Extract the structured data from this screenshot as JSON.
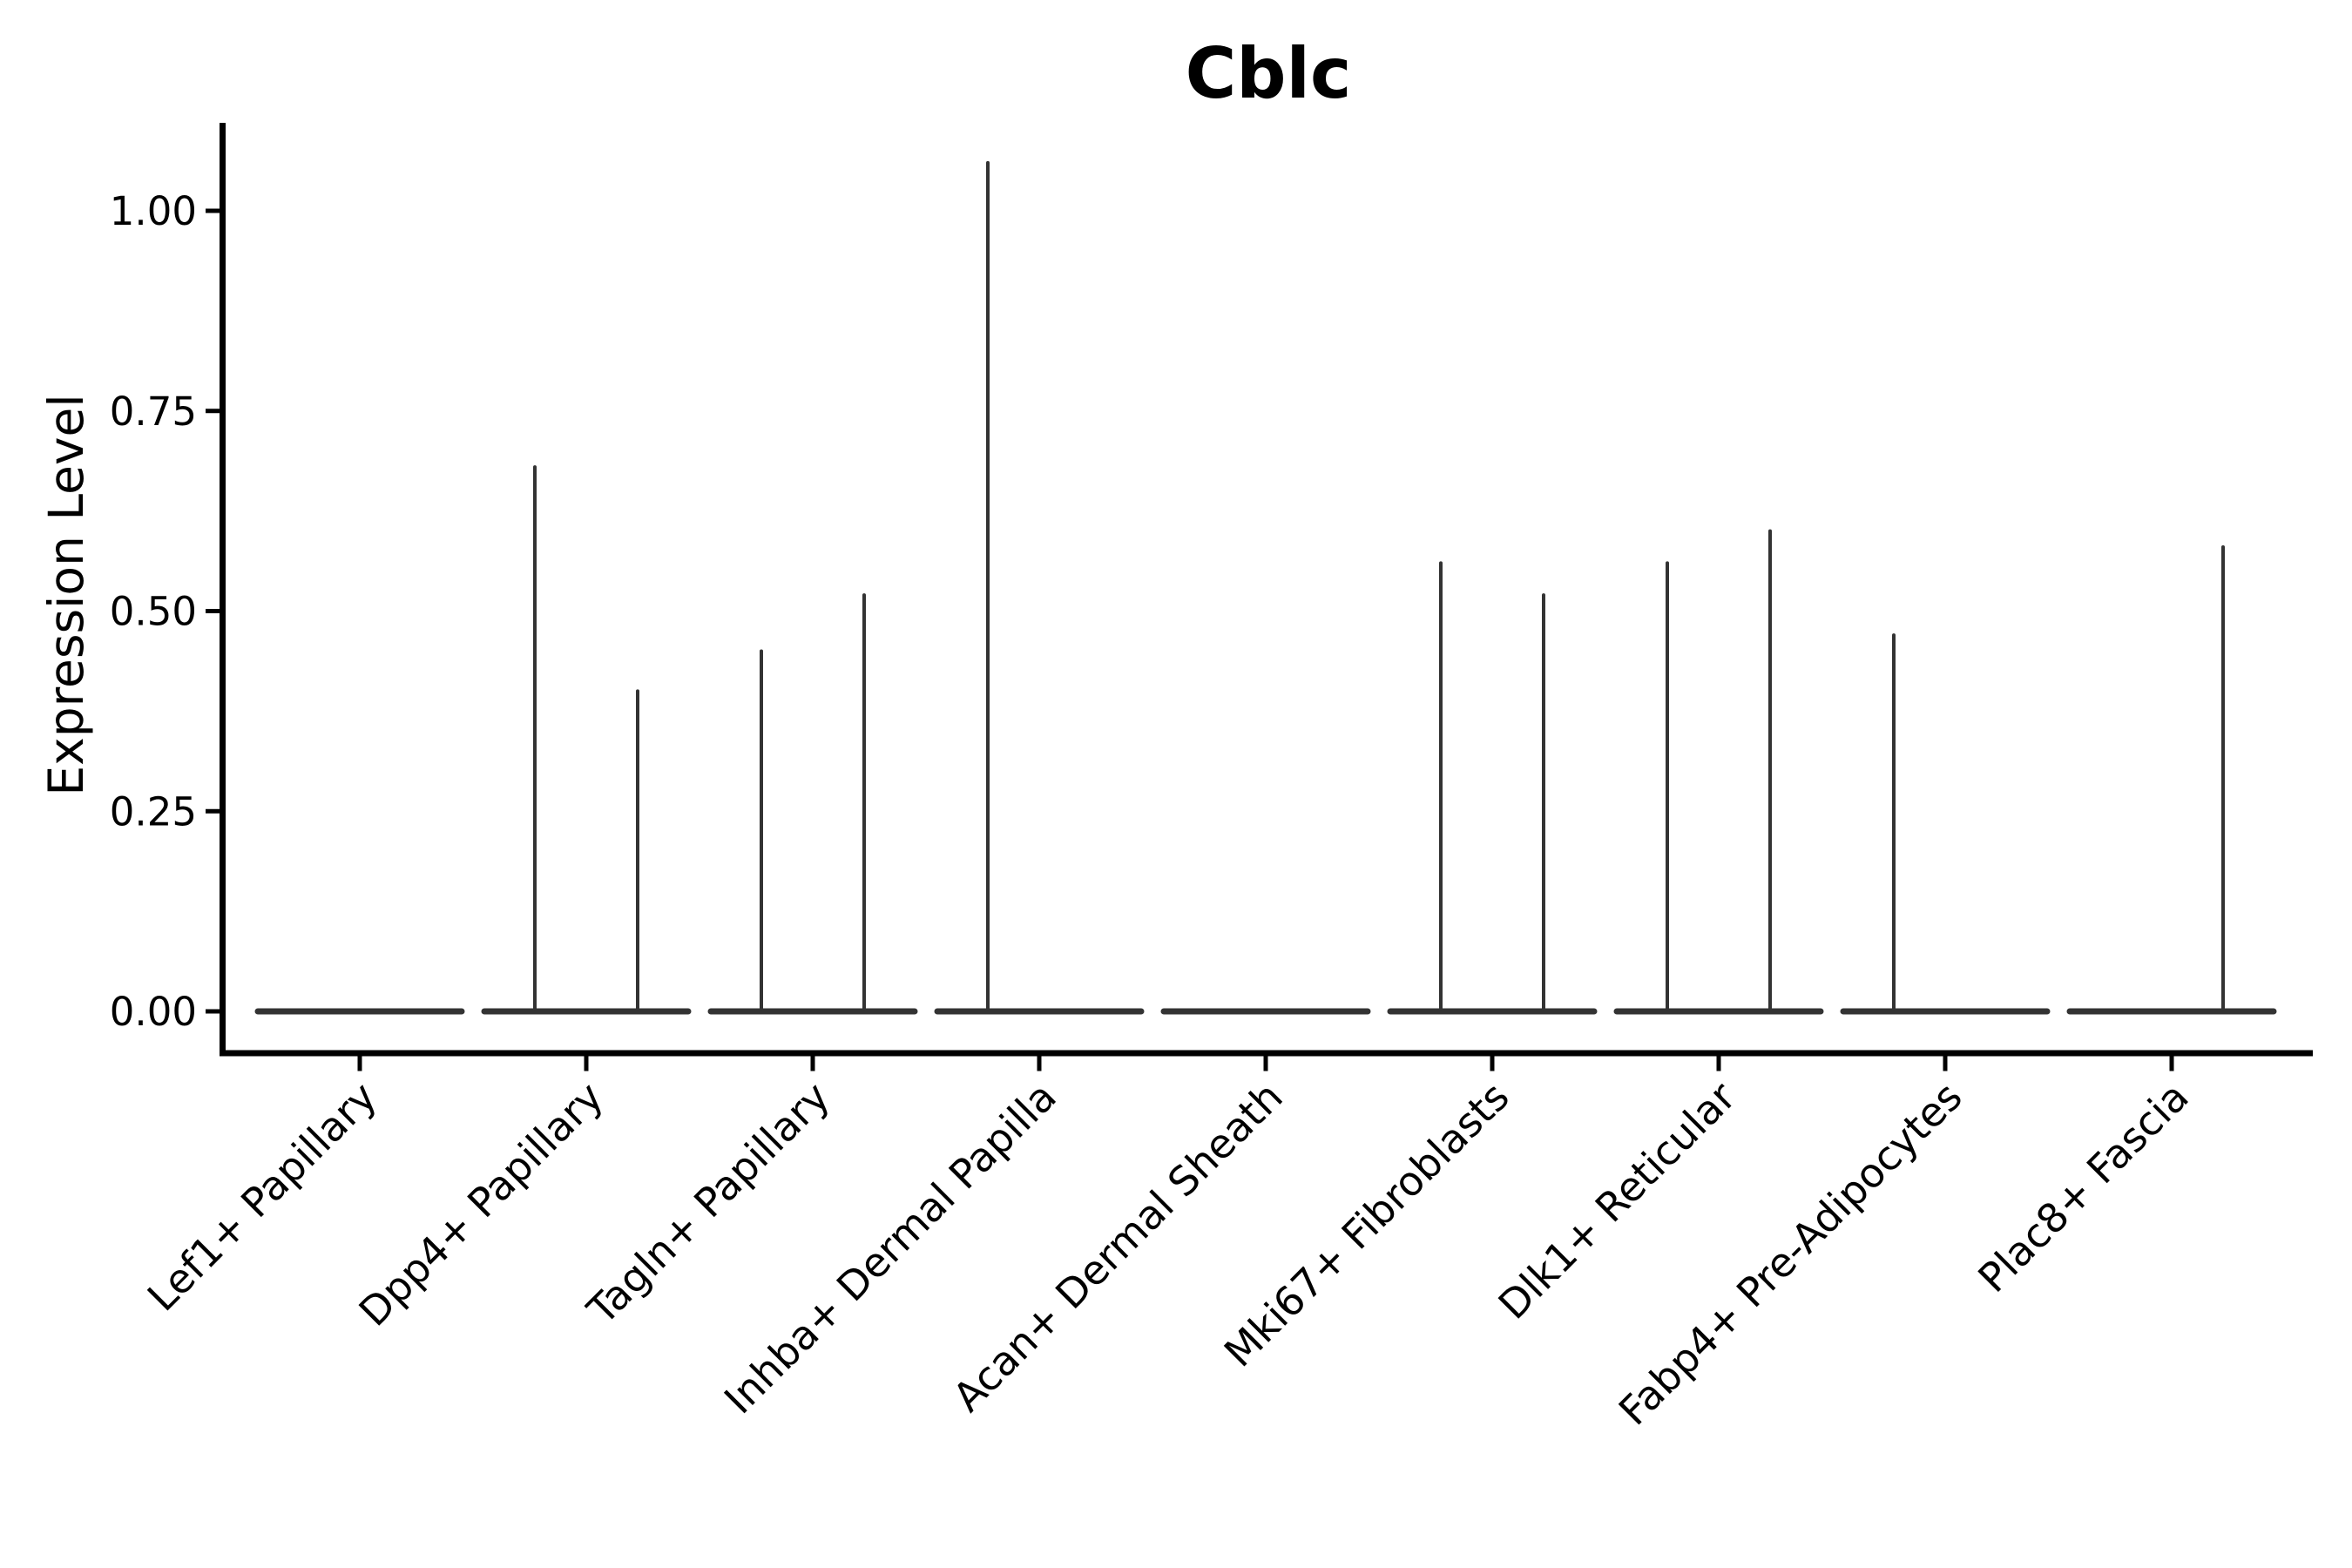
{
  "figure": {
    "background": "#ffffff",
    "axis_color": "#000000",
    "violin_color": "#333333"
  },
  "chart_data": {
    "type": "violin",
    "title": "Cblc",
    "xlabel": "",
    "ylabel": "Expression Level",
    "grid": false,
    "legend": "none",
    "ylim": [
      -0.055,
      1.11
    ],
    "ytick_values": [
      0,
      0.25,
      0.5,
      0.75,
      1.0
    ],
    "ytick_labels": [
      "0.00",
      "0.25",
      "0.50",
      "0.75",
      "1.00"
    ],
    "categories": [
      "Lef1+ Papillary",
      "Dpp4+ Papillary",
      "Tagln+ Papillary",
      "Inhba+ Dermal Papilla",
      "Acan+ Dermal Sheath",
      "Mki67+ Fibroblasts",
      "Dlk1+ Reticular",
      "Fabp4+ Pre-Adipocytes",
      "Plac8+ Fascia"
    ],
    "violins": [
      {
        "category": "Lef1+ Papillary",
        "baseline_value": 0,
        "spikes": []
      },
      {
        "category": "Dpp4+ Papillary",
        "baseline_value": 0,
        "spikes": [
          {
            "side": "left",
            "max_expression": 0.68
          },
          {
            "side": "right",
            "max_expression": 0.4
          }
        ]
      },
      {
        "category": "Tagln+ Papillary",
        "baseline_value": 0,
        "spikes": [
          {
            "side": "left",
            "max_expression": 0.45
          },
          {
            "side": "right",
            "max_expression": 0.52
          }
        ]
      },
      {
        "category": "Inhba+ Dermal Papilla",
        "baseline_value": 0,
        "spikes": [
          {
            "side": "left",
            "max_expression": 1.06
          }
        ]
      },
      {
        "category": "Acan+ Dermal Sheath",
        "baseline_value": 0,
        "spikes": []
      },
      {
        "category": "Mki67+ Fibroblasts",
        "baseline_value": 0,
        "spikes": [
          {
            "side": "left",
            "max_expression": 0.56
          },
          {
            "side": "right",
            "max_expression": 0.52
          }
        ]
      },
      {
        "category": "Dlk1+ Reticular",
        "baseline_value": 0,
        "spikes": [
          {
            "side": "left",
            "max_expression": 0.56
          },
          {
            "side": "right",
            "max_expression": 0.6
          }
        ]
      },
      {
        "category": "Fabp4+ Pre-Adipocytes",
        "baseline_value": 0,
        "spikes": [
          {
            "side": "left",
            "max_expression": 0.47
          }
        ]
      },
      {
        "category": "Plac8+ Fascia",
        "baseline_value": 0,
        "spikes": [
          {
            "side": "right",
            "max_expression": 0.58
          }
        ]
      }
    ]
  }
}
